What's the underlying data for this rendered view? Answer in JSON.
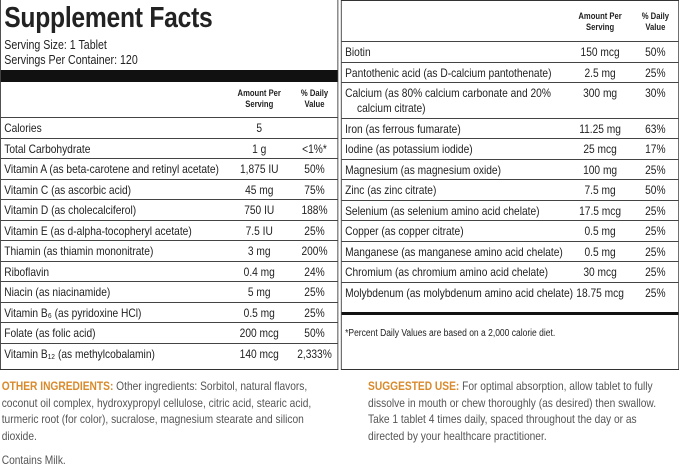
{
  "left_panel": {
    "title": "Supplement Facts",
    "serving_size": "Serving Size: 1 Tablet",
    "servings_per_container": "Servings Per Container: 120",
    "column_headers": {
      "amount": "Amount Per Serving",
      "daily_value": "% Daily Value"
    },
    "rows": [
      {
        "name": "Calories",
        "amount": "5"
      },
      {
        "name": "Total Carbohydrate",
        "amount": "1 g",
        "daily_value": "<1%*"
      },
      {
        "name": "Vitamin A (as beta-carotene and retinyl acetate)",
        "amount": "1,875 IU",
        "daily_value": "50%"
      },
      {
        "name": "Vitamin C (as ascorbic acid)",
        "amount": "45 mg",
        "daily_value": "75%"
      },
      {
        "name": "Vitamin D (as cholecalciferol)",
        "amount": "750 IU",
        "daily_value": "188%"
      },
      {
        "name": "Vitamin E (as d-alpha-tocopheryl acetate)",
        "amount": "7.5 IU",
        "daily_value": "25%"
      },
      {
        "name": "Thiamin (as thiamin mononitrate)",
        "amount": "3 mg",
        "daily_value": "200%"
      },
      {
        "name": "Riboflavin",
        "amount": "0.4 mg",
        "daily_value": "24%"
      },
      {
        "name": "Niacin (as niacinamide)",
        "amount": "5 mg",
        "daily_value": "25%"
      },
      {
        "name": "Vitamin B₆ (as pyridoxine HCl)",
        "amount": "0.5 mg",
        "daily_value": "25%"
      },
      {
        "name": "Folate (as folic acid)",
        "amount": "200 mcg",
        "daily_value": "50%"
      },
      {
        "name": "Vitamin B₁₂ (as methylcobalamin)",
        "amount": "140 mcg",
        "daily_value": "2,333%"
      }
    ]
  },
  "right_panel": {
    "column_headers": {
      "amount": "Amount Per Serving",
      "daily_value": "% Daily Value"
    },
    "rows": [
      {
        "name": "Biotin",
        "amount": "150 mcg",
        "daily_value": "50%"
      },
      {
        "name": "Pantothenic acid (as D-calcium pantothenate)",
        "amount": "2.5 mg",
        "daily_value": "25%"
      },
      {
        "name": "Calcium (as 80% calcium carbonate and 20% calcium citrate)",
        "amount": "300 mg",
        "daily_value": "30%"
      },
      {
        "name": "Iron (as ferrous fumarate)",
        "amount": "11.25 mg",
        "daily_value": "63%"
      },
      {
        "name": "Iodine (as potassium iodide)",
        "amount": "25 mcg",
        "daily_value": "17%"
      },
      {
        "name": "Magnesium (as magnesium oxide)",
        "amount": "100 mg",
        "daily_value": "25%"
      },
      {
        "name": "Zinc (as zinc citrate)",
        "amount": "7.5 mg",
        "daily_value": "50%"
      },
      {
        "name": "Selenium (as selenium amino acid chelate)",
        "amount": "17.5 mcg",
        "daily_value": "25%"
      },
      {
        "name": "Copper (as copper citrate)",
        "amount": "0.5 mg",
        "daily_value": "25%"
      },
      {
        "name": "Manganese (as manganese amino acid chelate)",
        "amount": "0.5 mg",
        "daily_value": "25%"
      },
      {
        "name": "Chromium (as chromium amino acid chelate)",
        "amount": "30 mcg",
        "daily_value": "25%"
      },
      {
        "name": "Molybdenum (as molybdenum amino acid chelate)",
        "amount": "18.75 mcg",
        "daily_value": "25%"
      }
    ],
    "footnote": "*Percent Daily Values are based on a 2,000 calorie diet."
  },
  "other_ingredients": {
    "label": "OTHER INGREDIENTS:",
    "text": "Other ingredients: Sorbitol, natural flavors, coconut oil complex, hydroxypropyl cellulose, citric acid, stearic acid, turmeric root (for color), sucralose, magnesium stearate and silicon dioxide.",
    "contains": "Contains Milk."
  },
  "suggested_use": {
    "label": "SUGGESTED USE:",
    "text": "For optimal absorption, allow tablet to fully dissolve in mouth or chew thoroughly (as desired) then swallow. Take 1 tablet 4 times daily, spaced throughout the day or as directed by your healthcare practitioner."
  }
}
